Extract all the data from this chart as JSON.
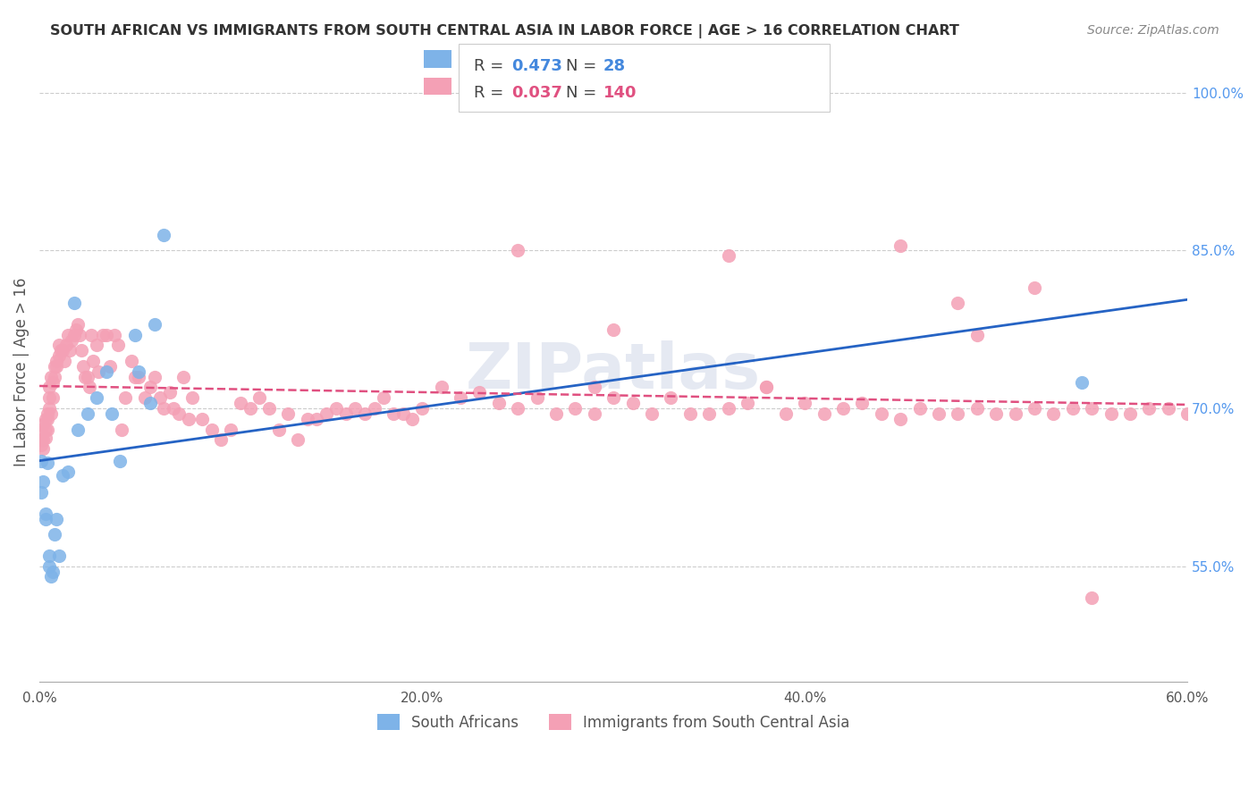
{
  "title": "SOUTH AFRICAN VS IMMIGRANTS FROM SOUTH CENTRAL ASIA IN LABOR FORCE | AGE > 16 CORRELATION CHART",
  "source": "Source: ZipAtlas.com",
  "ylabel": "In Labor Force | Age > 16",
  "xlabel": "",
  "xlim": [
    0.0,
    0.6
  ],
  "ylim": [
    0.44,
    1.03
  ],
  "xticks": [
    0.0,
    0.1,
    0.2,
    0.3,
    0.4,
    0.5,
    0.6
  ],
  "xticklabels": [
    "0.0%",
    "",
    "20.0%",
    "",
    "40.0%",
    "",
    "60.0%"
  ],
  "yticks_right": [
    0.55,
    0.7,
    0.85,
    1.0
  ],
  "ytick_labels_right": [
    "55.0%",
    "70.0%",
    "85.0%",
    "100.0%"
  ],
  "blue_R": 0.473,
  "blue_N": 28,
  "pink_R": 0.037,
  "pink_N": 140,
  "blue_color": "#7EB3E8",
  "pink_color": "#F4A0B5",
  "blue_line_color": "#2563C4",
  "pink_line_color": "#E05080",
  "legend_label_blue": "South Africans",
  "legend_label_pink": "Immigrants from South Central Asia",
  "watermark": "ZIPatlas",
  "blue_x": [
    0.001,
    0.001,
    0.002,
    0.003,
    0.003,
    0.004,
    0.005,
    0.005,
    0.006,
    0.007,
    0.008,
    0.009,
    0.01,
    0.012,
    0.015,
    0.018,
    0.02,
    0.025,
    0.03,
    0.035,
    0.038,
    0.042,
    0.05,
    0.052,
    0.058,
    0.06,
    0.065,
    0.545
  ],
  "blue_y": [
    0.65,
    0.62,
    0.63,
    0.595,
    0.6,
    0.648,
    0.55,
    0.56,
    0.54,
    0.545,
    0.58,
    0.595,
    0.56,
    0.636,
    0.64,
    0.8,
    0.68,
    0.695,
    0.71,
    0.735,
    0.695,
    0.65,
    0.77,
    0.735,
    0.705,
    0.78,
    0.865,
    0.725
  ],
  "pink_x": [
    0.001,
    0.001,
    0.001,
    0.002,
    0.002,
    0.002,
    0.003,
    0.003,
    0.003,
    0.004,
    0.004,
    0.004,
    0.005,
    0.005,
    0.005,
    0.006,
    0.006,
    0.007,
    0.007,
    0.008,
    0.008,
    0.009,
    0.009,
    0.01,
    0.01,
    0.011,
    0.012,
    0.013,
    0.014,
    0.015,
    0.016,
    0.017,
    0.018,
    0.019,
    0.02,
    0.021,
    0.022,
    0.023,
    0.024,
    0.025,
    0.026,
    0.027,
    0.028,
    0.03,
    0.031,
    0.033,
    0.035,
    0.037,
    0.039,
    0.041,
    0.043,
    0.045,
    0.048,
    0.05,
    0.052,
    0.055,
    0.058,
    0.06,
    0.063,
    0.065,
    0.068,
    0.07,
    0.073,
    0.075,
    0.078,
    0.08,
    0.085,
    0.09,
    0.095,
    0.1,
    0.105,
    0.11,
    0.115,
    0.12,
    0.125,
    0.13,
    0.135,
    0.14,
    0.145,
    0.15,
    0.155,
    0.16,
    0.165,
    0.17,
    0.175,
    0.18,
    0.185,
    0.19,
    0.195,
    0.2,
    0.21,
    0.22,
    0.23,
    0.24,
    0.25,
    0.26,
    0.27,
    0.28,
    0.29,
    0.3,
    0.31,
    0.32,
    0.33,
    0.34,
    0.35,
    0.36,
    0.37,
    0.38,
    0.39,
    0.4,
    0.41,
    0.42,
    0.43,
    0.44,
    0.45,
    0.46,
    0.47,
    0.48,
    0.49,
    0.5,
    0.51,
    0.52,
    0.53,
    0.54,
    0.55,
    0.56,
    0.57,
    0.58,
    0.59,
    0.6,
    0.45,
    0.3,
    0.25,
    0.52,
    0.49,
    0.48,
    0.38,
    0.36,
    0.29,
    0.55
  ],
  "pink_y": [
    0.68,
    0.67,
    0.665,
    0.67,
    0.685,
    0.662,
    0.69,
    0.672,
    0.68,
    0.695,
    0.69,
    0.68,
    0.72,
    0.71,
    0.7,
    0.73,
    0.695,
    0.725,
    0.71,
    0.74,
    0.73,
    0.745,
    0.74,
    0.75,
    0.76,
    0.755,
    0.755,
    0.745,
    0.76,
    0.77,
    0.755,
    0.765,
    0.77,
    0.775,
    0.78,
    0.77,
    0.755,
    0.74,
    0.73,
    0.73,
    0.72,
    0.77,
    0.745,
    0.76,
    0.735,
    0.77,
    0.77,
    0.74,
    0.77,
    0.76,
    0.68,
    0.71,
    0.745,
    0.73,
    0.73,
    0.71,
    0.72,
    0.73,
    0.71,
    0.7,
    0.715,
    0.7,
    0.695,
    0.73,
    0.69,
    0.71,
    0.69,
    0.68,
    0.67,
    0.68,
    0.705,
    0.7,
    0.71,
    0.7,
    0.68,
    0.695,
    0.67,
    0.69,
    0.69,
    0.695,
    0.7,
    0.695,
    0.7,
    0.695,
    0.7,
    0.71,
    0.695,
    0.695,
    0.69,
    0.7,
    0.72,
    0.71,
    0.715,
    0.705,
    0.7,
    0.71,
    0.695,
    0.7,
    0.72,
    0.71,
    0.705,
    0.695,
    0.71,
    0.695,
    0.695,
    0.7,
    0.705,
    0.72,
    0.695,
    0.705,
    0.695,
    0.7,
    0.705,
    0.695,
    0.69,
    0.7,
    0.695,
    0.695,
    0.7,
    0.695,
    0.695,
    0.7,
    0.695,
    0.7,
    0.7,
    0.695,
    0.695,
    0.7,
    0.7,
    0.695,
    0.855,
    0.775,
    0.85,
    0.815,
    0.77,
    0.8,
    0.72,
    0.845,
    0.695,
    0.52
  ]
}
